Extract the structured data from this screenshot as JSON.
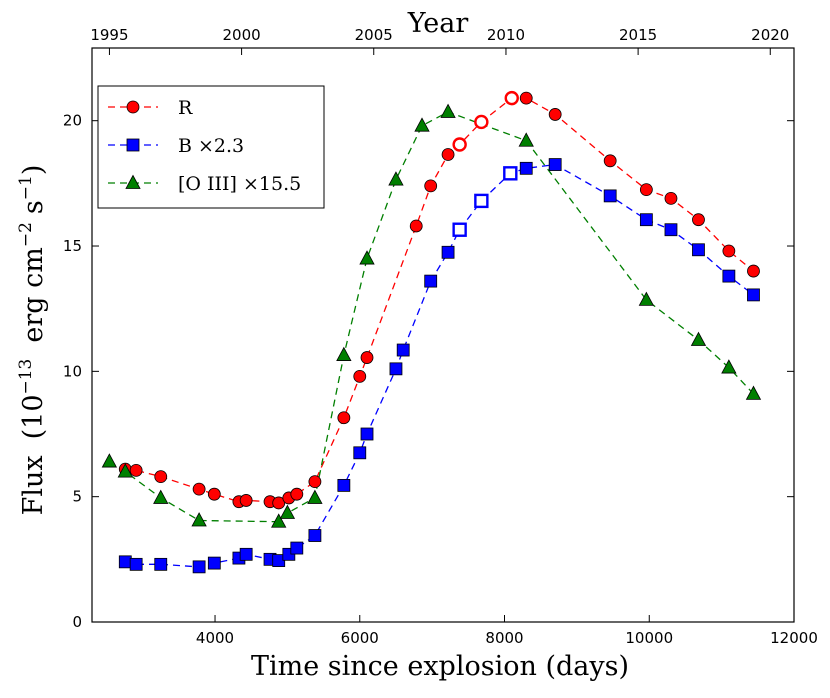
{
  "chart_data": {
    "type": "line",
    "title": "",
    "xlabel": "Time since explosion (days)",
    "ylabel_main": "Flux",
    "ylabel_unit_open": "(10",
    "ylabel_exp1": "−13",
    "ylabel_unit_mid": "erg cm",
    "ylabel_exp2": "−2",
    "ylabel_unit_s": "s",
    "ylabel_exp3": "−1",
    "ylabel_close": ")",
    "top_xlabel": "Year",
    "xlim": [
      2300,
      12000
    ],
    "ylim": [
      0,
      22.9
    ],
    "x_ticks": [
      4000,
      6000,
      8000,
      10000,
      12000
    ],
    "x_tick_labels": [
      "4000",
      "6000",
      "8000",
      "10000",
      "12000"
    ],
    "y_ticks": [
      0,
      5,
      10,
      15,
      20
    ],
    "y_tick_labels": [
      "0",
      "5",
      "10",
      "15",
      "20"
    ],
    "top_ticks": [
      {
        "value": 2541,
        "label": "1995"
      },
      {
        "value": 4367,
        "label": "2000"
      },
      {
        "value": 6193,
        "label": "2005"
      },
      {
        "value": 8020,
        "label": "2010"
      },
      {
        "value": 9846,
        "label": "2015"
      },
      {
        "value": 11672,
        "label": "2020"
      }
    ],
    "legend_position": "top-left",
    "series": [
      {
        "name": "R",
        "color": "#ff0000",
        "marker": "circle",
        "points": [
          {
            "x": 2760,
            "y": 6.1,
            "open": false
          },
          {
            "x": 2910,
            "y": 6.05,
            "open": false
          },
          {
            "x": 3250,
            "y": 5.8,
            "open": false
          },
          {
            "x": 3780,
            "y": 5.3,
            "open": false
          },
          {
            "x": 3990,
            "y": 5.1,
            "open": false
          },
          {
            "x": 4330,
            "y": 4.8,
            "open": false
          },
          {
            "x": 4430,
            "y": 4.85,
            "open": false
          },
          {
            "x": 4760,
            "y": 4.8,
            "open": false
          },
          {
            "x": 4880,
            "y": 4.75,
            "open": false
          },
          {
            "x": 5020,
            "y": 4.95,
            "open": false
          },
          {
            "x": 5130,
            "y": 5.1,
            "open": false
          },
          {
            "x": 5380,
            "y": 5.6,
            "open": false
          },
          {
            "x": 5780,
            "y": 8.15,
            "open": false
          },
          {
            "x": 6000,
            "y": 9.8,
            "open": false
          },
          {
            "x": 6100,
            "y": 10.55,
            "open": false
          },
          {
            "x": 6780,
            "y": 15.8,
            "open": false
          },
          {
            "x": 6980,
            "y": 17.4,
            "open": false
          },
          {
            "x": 7220,
            "y": 18.65,
            "open": false
          },
          {
            "x": 7380,
            "y": 19.05,
            "open": true
          },
          {
            "x": 7680,
            "y": 19.95,
            "open": true
          },
          {
            "x": 8100,
            "y": 20.9,
            "open": true
          },
          {
            "x": 8300,
            "y": 20.9,
            "open": false
          },
          {
            "x": 8700,
            "y": 20.25,
            "open": false
          },
          {
            "x": 9460,
            "y": 18.4,
            "open": false
          },
          {
            "x": 9960,
            "y": 17.25,
            "open": false
          },
          {
            "x": 10300,
            "y": 16.9,
            "open": false
          },
          {
            "x": 10680,
            "y": 16.05,
            "open": false
          },
          {
            "x": 11100,
            "y": 14.8,
            "open": false
          },
          {
            "x": 11440,
            "y": 14.0,
            "open": false
          }
        ]
      },
      {
        "name": "B ×2.3",
        "color": "#0000ff",
        "marker": "square",
        "points": [
          {
            "x": 2760,
            "y": 2.4,
            "open": false
          },
          {
            "x": 2910,
            "y": 2.3,
            "open": false
          },
          {
            "x": 3250,
            "y": 2.3,
            "open": false
          },
          {
            "x": 3780,
            "y": 2.2,
            "open": false
          },
          {
            "x": 3990,
            "y": 2.35,
            "open": false
          },
          {
            "x": 4330,
            "y": 2.55,
            "open": false
          },
          {
            "x": 4430,
            "y": 2.7,
            "open": false
          },
          {
            "x": 4760,
            "y": 2.5,
            "open": false
          },
          {
            "x": 4880,
            "y": 2.45,
            "open": false
          },
          {
            "x": 5020,
            "y": 2.7,
            "open": false
          },
          {
            "x": 5130,
            "y": 2.95,
            "open": false
          },
          {
            "x": 5380,
            "y": 3.45,
            "open": false
          },
          {
            "x": 5780,
            "y": 5.45,
            "open": false
          },
          {
            "x": 6000,
            "y": 6.75,
            "open": false
          },
          {
            "x": 6100,
            "y": 7.5,
            "open": false
          },
          {
            "x": 6500,
            "y": 10.1,
            "open": false
          },
          {
            "x": 6600,
            "y": 10.85,
            "open": false
          },
          {
            "x": 6980,
            "y": 13.6,
            "open": false
          },
          {
            "x": 7220,
            "y": 14.75,
            "open": false
          },
          {
            "x": 7380,
            "y": 15.65,
            "open": true
          },
          {
            "x": 7680,
            "y": 16.8,
            "open": true
          },
          {
            "x": 8080,
            "y": 17.9,
            "open": true
          },
          {
            "x": 8300,
            "y": 18.1,
            "open": false
          },
          {
            "x": 8700,
            "y": 18.25,
            "open": false
          },
          {
            "x": 9460,
            "y": 17.0,
            "open": false
          },
          {
            "x": 9960,
            "y": 16.05,
            "open": false
          },
          {
            "x": 10300,
            "y": 15.65,
            "open": false
          },
          {
            "x": 10680,
            "y": 14.85,
            "open": false
          },
          {
            "x": 11100,
            "y": 13.8,
            "open": false
          },
          {
            "x": 11440,
            "y": 13.05,
            "open": false
          }
        ]
      },
      {
        "name": "[O III] ×15.5",
        "color": "#007f00",
        "marker": "triangle",
        "points": [
          {
            "x": 2540,
            "y": 6.4,
            "open": false
          },
          {
            "x": 2760,
            "y": 6.0,
            "open": false
          },
          {
            "x": 3250,
            "y": 4.95,
            "open": false
          },
          {
            "x": 3780,
            "y": 4.05,
            "open": false
          },
          {
            "x": 4880,
            "y": 4.0,
            "open": false
          },
          {
            "x": 5000,
            "y": 4.35,
            "open": false
          },
          {
            "x": 5380,
            "y": 4.95,
            "open": false
          },
          {
            "x": 5780,
            "y": 10.65,
            "open": false
          },
          {
            "x": 6100,
            "y": 14.5,
            "open": false
          },
          {
            "x": 6500,
            "y": 17.65,
            "open": false
          },
          {
            "x": 6860,
            "y": 19.8,
            "open": false
          },
          {
            "x": 7220,
            "y": 20.35,
            "open": false
          },
          {
            "x": 8300,
            "y": 19.2,
            "open": false
          },
          {
            "x": 9960,
            "y": 12.85,
            "open": false
          },
          {
            "x": 10680,
            "y": 11.25,
            "open": false
          },
          {
            "x": 11100,
            "y": 10.15,
            "open": false
          },
          {
            "x": 11440,
            "y": 9.1,
            "open": false
          }
        ]
      }
    ]
  }
}
